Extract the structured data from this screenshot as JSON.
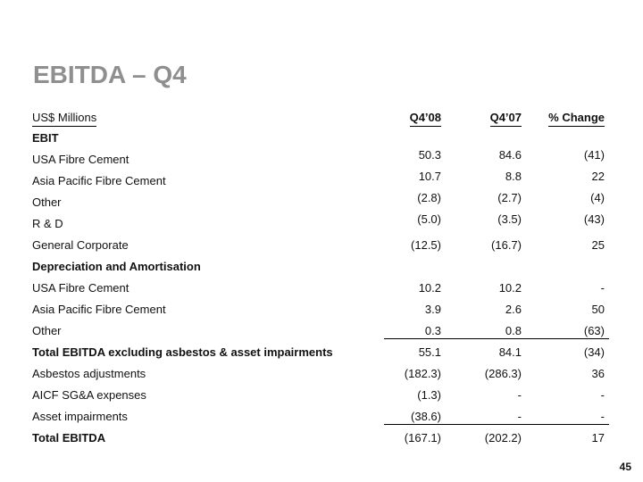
{
  "slide": {
    "title": "EBITDA – Q4",
    "page_number": "45"
  },
  "colors": {
    "title": "#8f8f8f",
    "text": "#111111",
    "line": "#000000"
  },
  "table": {
    "unit_header": "US$ Millions",
    "col_headers": [
      "Q4’08",
      "Q4’07",
      "% Change"
    ],
    "rows": [
      {
        "label": "EBIT",
        "bold": true,
        "values": [
          "",
          "",
          ""
        ]
      },
      {
        "label": "USA Fibre Cement",
        "bold": false,
        "values": [
          "50.3",
          "84.6",
          "(41)"
        ]
      },
      {
        "label": "Asia Pacific Fibre Cement",
        "bold": false,
        "values": [
          "10.7",
          "8.8",
          "22"
        ]
      },
      {
        "label": "Other",
        "bold": false,
        "values": [
          "(2.8)",
          "(2.7)",
          "(4)"
        ]
      },
      {
        "label": "R & D",
        "bold": false,
        "values": [
          "(5.0)",
          "(3.5)",
          "(43)"
        ]
      },
      {
        "label": "General Corporate",
        "bold": false,
        "values": [
          "(12.5)",
          "(16.7)",
          "25"
        ]
      },
      {
        "label": "Depreciation and Amortisation",
        "bold": true,
        "values": [
          "",
          "",
          ""
        ]
      },
      {
        "label": "USA Fibre Cement",
        "bold": false,
        "values": [
          "10.2",
          "10.2",
          "-"
        ]
      },
      {
        "label": "Asia Pacific Fibre Cement",
        "bold": false,
        "values": [
          "3.9",
          "2.6",
          "50"
        ]
      },
      {
        "label": "Other",
        "bold": false,
        "values": [
          "0.3",
          "0.8",
          "(63)"
        ],
        "rule_below": true
      },
      {
        "label": "Total EBITDA excluding asbestos & asset impairments",
        "bold": true,
        "values": [
          "55.1",
          "84.1",
          "(34)"
        ]
      },
      {
        "label": "Asbestos adjustments",
        "bold": false,
        "values": [
          "(182.3)",
          "(286.3)",
          "36"
        ]
      },
      {
        "label": "AICF SG&A expenses",
        "bold": false,
        "values": [
          "(1.3)",
          "-",
          "-"
        ]
      },
      {
        "label": "Asset impairments",
        "bold": false,
        "values": [
          "(38.6)",
          "-",
          "-"
        ],
        "rule_below": true
      },
      {
        "label": "Total EBITDA",
        "bold": true,
        "values": [
          "(167.1)",
          "(202.2)",
          "17"
        ]
      }
    ]
  }
}
